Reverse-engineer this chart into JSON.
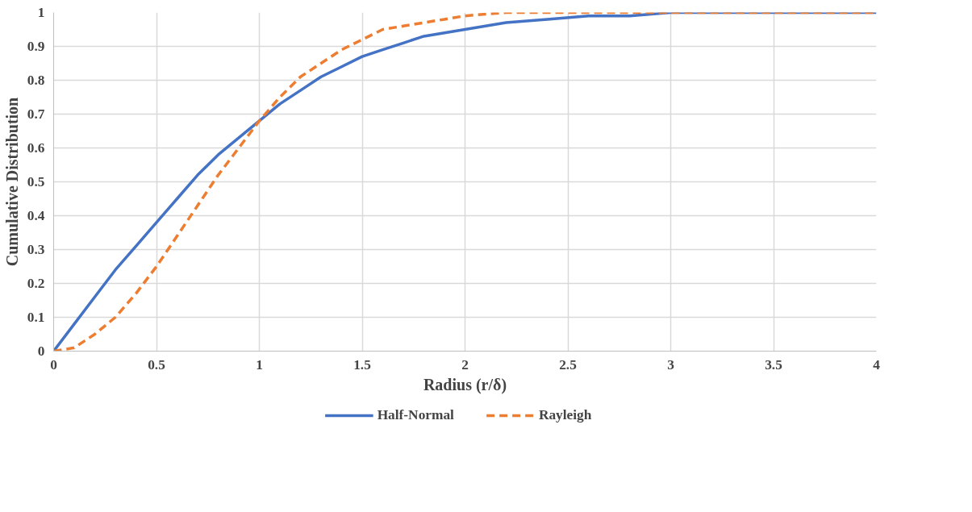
{
  "chart_data": {
    "type": "line",
    "xlabel": "Radius (r/δ)",
    "ylabel": "Cumulative Distribution",
    "xlim": [
      0,
      4
    ],
    "ylim": [
      0,
      1
    ],
    "xticks": [
      0,
      0.5,
      1,
      1.5,
      2,
      2.5,
      3,
      3.5,
      4
    ],
    "yticks": [
      0,
      0.1,
      0.2,
      0.3,
      0.4,
      0.5,
      0.6,
      0.7,
      0.8,
      0.9,
      1
    ],
    "grid": true,
    "legend": "bottom",
    "series": [
      {
        "name": "Half-Normal",
        "color": "#4472c4",
        "line_style": "solid",
        "x": [
          0,
          0.1,
          0.2,
          0.3,
          0.4,
          0.5,
          0.6,
          0.7,
          0.8,
          0.9,
          1,
          1.1,
          1.2,
          1.3,
          1.4,
          1.5,
          1.6,
          1.7,
          1.8,
          1.9,
          2,
          2.2,
          2.4,
          2.6,
          2.8,
          3,
          3.5,
          4
        ],
        "values": [
          0,
          0.08,
          0.16,
          0.24,
          0.31,
          0.38,
          0.45,
          0.52,
          0.58,
          0.63,
          0.68,
          0.73,
          0.77,
          0.81,
          0.84,
          0.87,
          0.89,
          0.91,
          0.93,
          0.94,
          0.95,
          0.97,
          0.98,
          0.99,
          0.99,
          1,
          1,
          1
        ]
      },
      {
        "name": "Rayleigh",
        "color": "#ed7d31",
        "line_style": "dashed",
        "x": [
          0,
          0.1,
          0.2,
          0.3,
          0.4,
          0.5,
          0.6,
          0.7,
          0.8,
          0.9,
          1,
          1.1,
          1.2,
          1.3,
          1.4,
          1.5,
          1.6,
          1.7,
          1.8,
          1.9,
          2,
          2.2,
          2.4,
          2.6,
          3,
          3.5,
          4
        ],
        "values": [
          0,
          0.01,
          0.05,
          0.1,
          0.17,
          0.25,
          0.34,
          0.43,
          0.52,
          0.6,
          0.68,
          0.75,
          0.81,
          0.85,
          0.89,
          0.92,
          0.95,
          0.96,
          0.97,
          0.98,
          0.99,
          1,
          1,
          1,
          1,
          1,
          1
        ]
      }
    ]
  }
}
